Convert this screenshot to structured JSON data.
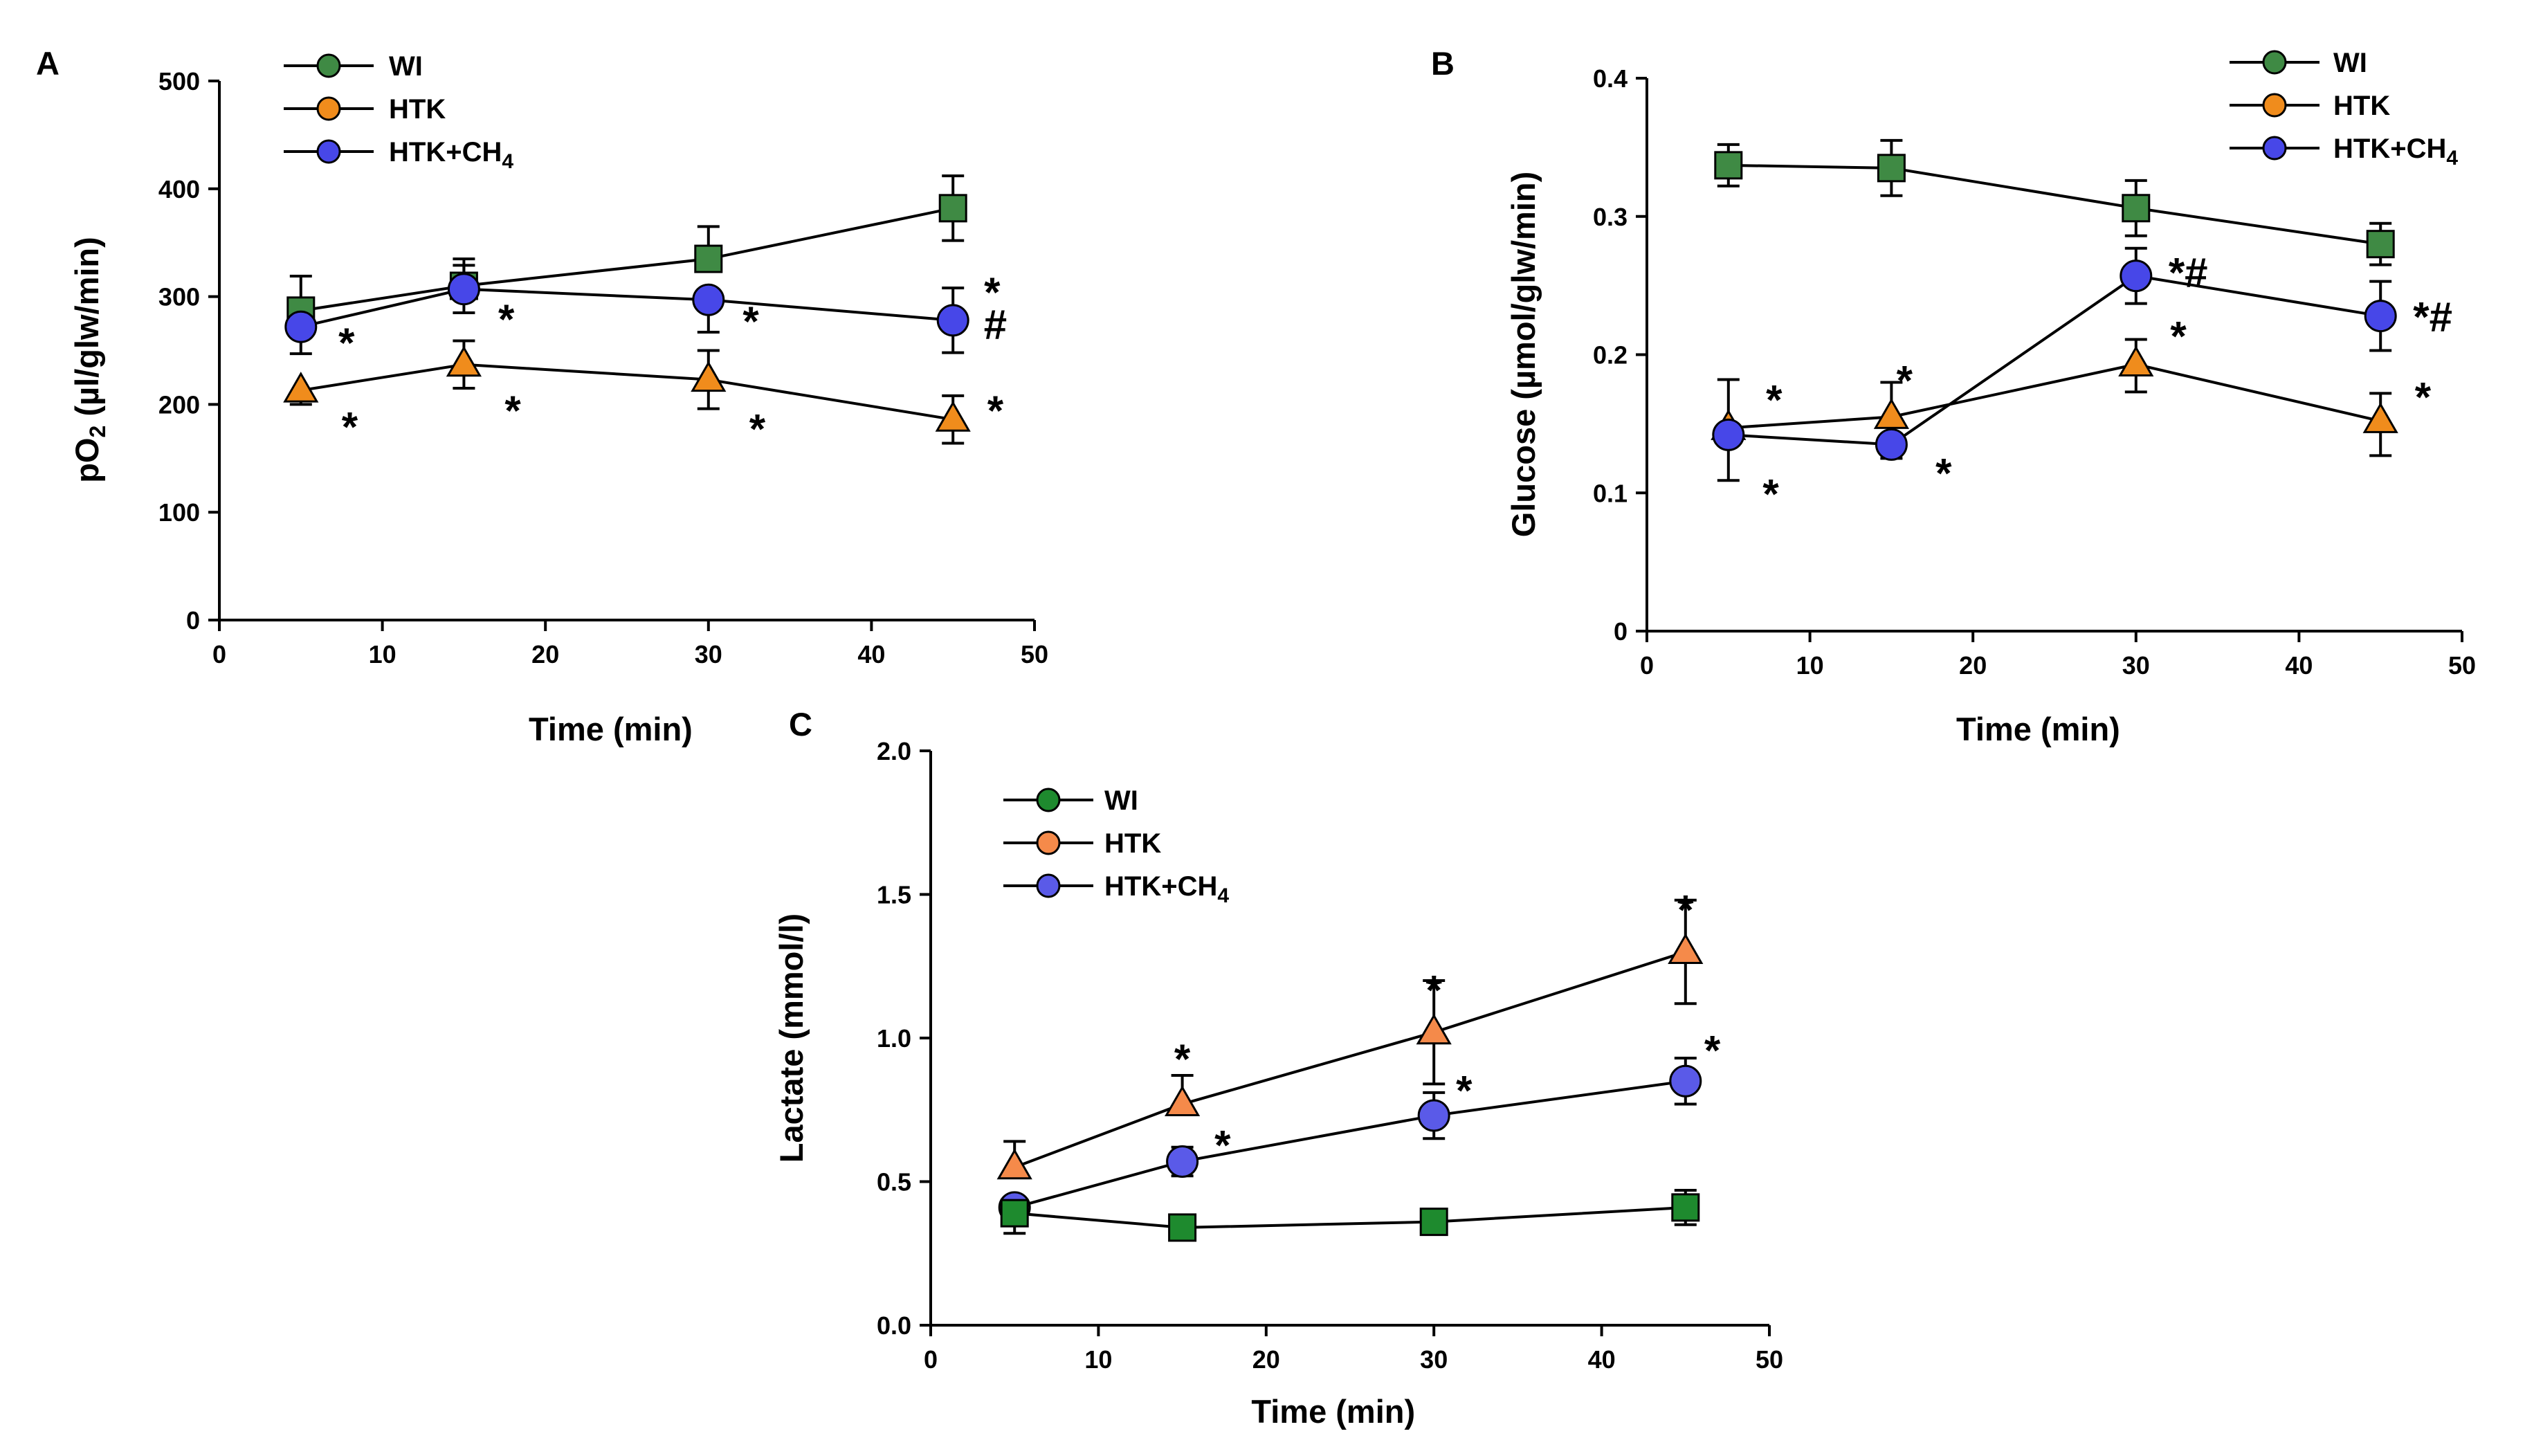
{
  "chart_data": [
    {
      "id": "A",
      "type": "line",
      "panel_label": "A",
      "xlabel": "Time (min)",
      "ylabel_main": "pO",
      "ylabel_sub": "2",
      "ylabel_rest": " (µl/glw/min)",
      "xlim": [
        0,
        50
      ],
      "ylim": [
        0,
        500
      ],
      "xticks": [
        0,
        10,
        20,
        30,
        40,
        50
      ],
      "xtick_labels": [
        "0",
        "10",
        "20",
        "30",
        "40",
        "50"
      ],
      "yticks": [
        0,
        100,
        200,
        300,
        400,
        500
      ],
      "ytick_labels": [
        "0",
        "100",
        "200",
        "300",
        "400",
        "500"
      ],
      "legend": [
        {
          "main": "WI",
          "sub": "",
          "color": "#3f8a44",
          "marker": "circle"
        },
        {
          "main": "HTK",
          "sub": "",
          "color": "#f08c1c",
          "marker": "circle"
        },
        {
          "main": "HTK+CH",
          "sub": "4",
          "color": "#4747e8",
          "marker": "circle"
        }
      ],
      "series": [
        {
          "name": "WI",
          "marker": "square",
          "color": "#3f8a44",
          "x": [
            5,
            15,
            30,
            45
          ],
          "y": [
            287,
            310,
            335,
            382
          ],
          "err_up": [
            32,
            25,
            30,
            30
          ],
          "err_down": [
            0,
            0,
            0,
            30
          ]
        },
        {
          "name": "HTK+CH4",
          "marker": "circle",
          "color": "#4747e8",
          "x": [
            5,
            15,
            30,
            45
          ],
          "y": [
            272,
            307,
            297,
            278
          ],
          "err_up": [
            0,
            22,
            0,
            30
          ],
          "err_down": [
            25,
            22,
            30,
            30
          ]
        },
        {
          "name": "HTK",
          "marker": "triangle",
          "color": "#f08c1c",
          "x": [
            5,
            15,
            30,
            45
          ],
          "y": [
            213,
            237,
            223,
            186
          ],
          "err_up": [
            0,
            22,
            27,
            22
          ],
          "err_down": [
            13,
            22,
            27,
            22
          ]
        }
      ],
      "annotations": [
        {
          "x": 7.8,
          "y": 258,
          "text": "*"
        },
        {
          "x": 17.6,
          "y": 280,
          "text": "*"
        },
        {
          "x": 32.6,
          "y": 278,
          "text": "*"
        },
        {
          "x": 47.4,
          "y": 305,
          "text": "*"
        },
        {
          "x": 47.6,
          "y": 275,
          "text": "#"
        },
        {
          "x": 8.0,
          "y": 180,
          "text": "*"
        },
        {
          "x": 18.0,
          "y": 195,
          "text": "*"
        },
        {
          "x": 33.0,
          "y": 178,
          "text": "*"
        },
        {
          "x": 47.6,
          "y": 195,
          "text": "*"
        }
      ]
    },
    {
      "id": "B",
      "type": "line",
      "panel_label": "B",
      "xlabel": "Time (min)",
      "ylabel_main": "Glucose (µmol/glw/min)",
      "ylabel_sub": "",
      "ylabel_rest": "",
      "xlim": [
        0,
        50
      ],
      "ylim": [
        0,
        0.4
      ],
      "xticks": [
        0,
        10,
        20,
        30,
        40,
        50
      ],
      "xtick_labels": [
        "0",
        "10",
        "20",
        "30",
        "40",
        "50"
      ],
      "yticks": [
        0,
        0.1,
        0.2,
        0.3,
        0.4
      ],
      "ytick_labels": [
        "0",
        "0.1",
        "0.2",
        "0.3",
        "0.4"
      ],
      "legend": [
        {
          "main": "WI",
          "sub": "",
          "color": "#3f8a44",
          "marker": "circle"
        },
        {
          "main": "HTK",
          "sub": "",
          "color": "#f08c1c",
          "marker": "circle"
        },
        {
          "main": "HTK+CH",
          "sub": "4",
          "color": "#4747e8",
          "marker": "circle"
        }
      ],
      "series": [
        {
          "name": "WI",
          "marker": "square",
          "color": "#3f8a44",
          "x": [
            5,
            15,
            30,
            45
          ],
          "y": [
            0.337,
            0.335,
            0.306,
            0.28
          ],
          "err_up": [
            0.015,
            0.02,
            0.02,
            0.015
          ],
          "err_down": [
            0.015,
            0.02,
            0.02,
            0.015
          ]
        },
        {
          "name": "HTK",
          "marker": "triangle",
          "color": "#f08c1c",
          "x": [
            5,
            15,
            30,
            45
          ],
          "y": [
            0.147,
            0.155,
            0.193,
            0.152
          ],
          "err_up": [
            0.035,
            0.025,
            0.018,
            0.02
          ],
          "err_down": [
            0.0,
            0.02,
            0.02,
            0.025
          ]
        },
        {
          "name": "HTK+CH4",
          "marker": "circle",
          "color": "#4747e8",
          "x": [
            5,
            15,
            30,
            45
          ],
          "y": [
            0.142,
            0.135,
            0.257,
            0.228
          ],
          "err_up": [
            0.0,
            0.0,
            0.02,
            0.025
          ],
          "err_down": [
            0.033,
            0.01,
            0.02,
            0.025
          ]
        }
      ],
      "annotations": [
        {
          "x": 7.8,
          "y": 0.168,
          "text": "*"
        },
        {
          "x": 15.8,
          "y": 0.182,
          "text": "*"
        },
        {
          "x": 32.6,
          "y": 0.214,
          "text": "*"
        },
        {
          "x": 47.6,
          "y": 0.17,
          "text": "*"
        },
        {
          "x": 7.6,
          "y": 0.1,
          "text": "*"
        },
        {
          "x": 18.2,
          "y": 0.115,
          "text": "*"
        },
        {
          "x": 33.2,
          "y": 0.26,
          "text": "*#"
        },
        {
          "x": 48.2,
          "y": 0.228,
          "text": "*#"
        }
      ]
    },
    {
      "id": "C",
      "type": "line",
      "panel_label": "C",
      "xlabel": "Time (min)",
      "ylabel_main": "Lactate (mmol/l)",
      "ylabel_sub": "",
      "ylabel_rest": "",
      "xlim": [
        0,
        50
      ],
      "ylim": [
        0,
        2.0
      ],
      "xticks": [
        0,
        10,
        20,
        30,
        40,
        50
      ],
      "xtick_labels": [
        "0",
        "10",
        "20",
        "30",
        "40",
        "50"
      ],
      "yticks": [
        0,
        0.5,
        1.0,
        1.5,
        2.0
      ],
      "ytick_labels": [
        "0.0",
        "0.5",
        "1.0",
        "1.5",
        "2.0"
      ],
      "legend": [
        {
          "main": "WI",
          "sub": "",
          "color": "#1e8a2e",
          "marker": "circle"
        },
        {
          "main": "HTK",
          "sub": "",
          "color": "#f58a4a",
          "marker": "circle"
        },
        {
          "main": "HTK+CH",
          "sub": "4",
          "color": "#5a5ae8",
          "marker": "circle"
        }
      ],
      "series": [
        {
          "name": "HTK",
          "marker": "triangle",
          "color": "#f58a4a",
          "x": [
            5,
            15,
            30,
            45
          ],
          "y": [
            0.55,
            0.77,
            1.02,
            1.3
          ],
          "err_up": [
            0.09,
            0.1,
            0.18,
            0.18
          ],
          "err_down": [
            0.0,
            0.0,
            0.18,
            0.18
          ]
        },
        {
          "name": "HTK+CH4",
          "marker": "circle",
          "color": "#5a5ae8",
          "x": [
            5,
            15,
            30,
            45
          ],
          "y": [
            0.41,
            0.57,
            0.73,
            0.85
          ],
          "err_up": [
            0.0,
            0.05,
            0.08,
            0.08
          ],
          "err_down": [
            0.09,
            0.05,
            0.08,
            0.08
          ]
        },
        {
          "name": "WI",
          "marker": "square",
          "color": "#1e8a2e",
          "x": [
            5,
            15,
            30,
            45
          ],
          "y": [
            0.39,
            0.34,
            0.36,
            0.41
          ],
          "err_up": [
            0.04,
            0.0,
            0.0,
            0.06
          ],
          "err_down": [
            0.04,
            0.0,
            0.0,
            0.06
          ]
        }
      ],
      "annotations": [
        {
          "x": 15.0,
          "y": 0.93,
          "text": "*"
        },
        {
          "x": 30.0,
          "y": 1.17,
          "text": "*"
        },
        {
          "x": 45.0,
          "y": 1.45,
          "text": "*"
        },
        {
          "x": 17.4,
          "y": 0.63,
          "text": "*"
        },
        {
          "x": 31.8,
          "y": 0.82,
          "text": "*"
        },
        {
          "x": 46.6,
          "y": 0.96,
          "text": "*"
        }
      ]
    }
  ]
}
